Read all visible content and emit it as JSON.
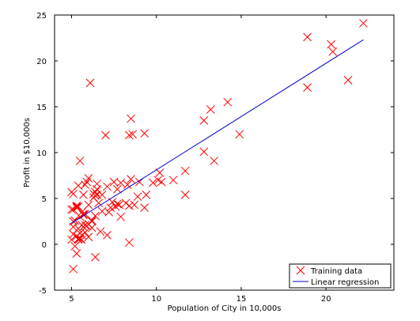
{
  "chart_data": {
    "type": "scatter",
    "xlabel": "Population of City in 10,000s",
    "ylabel": "Profit in $10,000s",
    "xlim": [
      4,
      24
    ],
    "ylim": [
      -5,
      25
    ],
    "xticks": [
      5,
      10,
      15,
      20
    ],
    "yticks": [
      -5,
      0,
      5,
      10,
      15,
      20,
      25
    ],
    "grid": false,
    "legend_position": "bottom-right",
    "series": [
      {
        "name": "Training data",
        "kind": "scatter",
        "marker": "x",
        "color": "#ff0000",
        "points": [
          [
            6.1,
            17.6
          ],
          [
            5.5,
            9.1
          ],
          [
            8.5,
            13.7
          ],
          [
            7.0,
            11.9
          ],
          [
            5.9,
            6.8
          ],
          [
            8.4,
            11.9
          ],
          [
            5.8,
            3.3
          ],
          [
            8.6,
            12.0
          ],
          [
            6.5,
            6.6
          ],
          [
            5.1,
            3.8
          ],
          [
            5.7,
            3.3
          ],
          [
            14.2,
            15.5
          ],
          [
            5.7,
            3.2
          ],
          [
            5.1,
            5.5
          ],
          [
            5.7,
            5.4
          ],
          [
            5.4,
            6.4
          ],
          [
            5.4,
            0.6
          ],
          [
            7.1,
            6.3
          ],
          [
            5.3,
            4.1
          ],
          [
            5.3,
            4.0
          ],
          [
            6.4,
            5.3
          ],
          [
            5.0,
            3.8
          ],
          [
            5.3,
            4.2
          ],
          [
            5.1,
            1.1
          ],
          [
            6.8,
            3.6
          ],
          [
            6.3,
            5.1
          ],
          [
            5.4,
            4.1
          ],
          [
            6.2,
            2.6
          ],
          [
            5.5,
            0.6
          ],
          [
            5.7,
            1.9
          ],
          [
            5.8,
            1.3
          ],
          [
            6.2,
            2.5
          ],
          [
            5.6,
            1.0
          ],
          [
            6.0,
            4.3
          ],
          [
            5.0,
            5.7
          ],
          [
            5.6,
            2.1
          ],
          [
            5.2,
            2.6
          ],
          [
            5.4,
            1.7
          ],
          [
            6.4,
            5.7
          ],
          [
            6.0,
            2.2
          ],
          [
            6.5,
            5.4
          ],
          [
            5.8,
            2.1
          ],
          [
            5.4,
            0.5
          ],
          [
            6.3,
            5.5
          ],
          [
            5.8,
            6.5
          ],
          [
            6.5,
            6.0
          ],
          [
            7.6,
            4.1
          ],
          [
            6.2,
            1.8
          ],
          [
            5.6,
            0.5
          ],
          [
            7.9,
            6.7
          ],
          [
            6.6,
            4.5
          ],
          [
            8.3,
            6.5
          ],
          [
            6.4,
            -1.4
          ],
          [
            7.3,
            4.0
          ],
          [
            7.7,
            6.0
          ],
          [
            8.2,
            4.5
          ],
          [
            7.4,
            4.6
          ],
          [
            9.8,
            6.7
          ],
          [
            10.2,
            7.8
          ],
          [
            8.7,
            4.3
          ],
          [
            9.3,
            4.0
          ],
          [
            9.4,
            5.4
          ],
          [
            10.1,
            7.0
          ],
          [
            11.0,
            7.0
          ],
          [
            8.4,
            0.2
          ],
          [
            7.1,
            1.0
          ],
          [
            8.9,
            5.2
          ],
          [
            9.0,
            6.8
          ],
          [
            8.5,
            7.1
          ],
          [
            7.5,
            6.8
          ],
          [
            11.7,
            5.4
          ],
          [
            11.7,
            8.0
          ],
          [
            12.8,
            10.1
          ],
          [
            13.4,
            9.1
          ],
          [
            12.8,
            13.5
          ],
          [
            13.2,
            14.7
          ],
          [
            14.9,
            12.0
          ],
          [
            18.9,
            22.6
          ],
          [
            20.3,
            21.8
          ],
          [
            20.4,
            21.0
          ],
          [
            21.3,
            17.9
          ],
          [
            22.2,
            24.1
          ],
          [
            18.9,
            17.1
          ],
          [
            5.2,
            -0.2
          ],
          [
            5.3,
            -1.0
          ],
          [
            5.1,
            -2.7
          ],
          [
            5.6,
            3.5
          ],
          [
            6.7,
            1.4
          ],
          [
            7.2,
            3.5
          ],
          [
            5.0,
            0.5
          ],
          [
            6.0,
            7.2
          ],
          [
            9.3,
            12.1
          ],
          [
            5.1,
            2.5
          ],
          [
            6.0,
            0.8
          ],
          [
            5.5,
            3.0
          ],
          [
            5.3,
            0.9
          ],
          [
            7.8,
            4.3
          ],
          [
            10.3,
            6.8
          ],
          [
            8.4,
            4.2
          ],
          [
            6.4,
            3.1
          ],
          [
            5.9,
            2.0
          ],
          [
            7.9,
            3.0
          ],
          [
            7.7,
            4.4
          ],
          [
            5.5,
            1.2
          ],
          [
            6.8,
            5.4
          ],
          [
            5.1,
            1.9
          ]
        ]
      },
      {
        "name": "Linear regression",
        "kind": "line",
        "color": "#0000cc",
        "x": [
          5.0,
          22.2
        ],
        "y": [
          2.3,
          22.3
        ]
      }
    ]
  }
}
